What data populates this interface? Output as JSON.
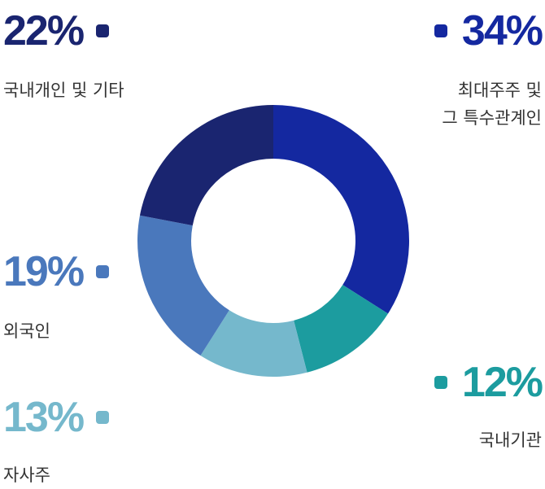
{
  "chart_data": {
    "type": "pie",
    "title": "",
    "center_label": "",
    "slices": [
      {
        "key": "largest",
        "label_lines": [
          "최대주주 및",
          "그 특수관계인"
        ],
        "value": 34,
        "display": "34%",
        "color": "#1428a0"
      },
      {
        "key": "inst",
        "label_lines": [
          "국내기관"
        ],
        "value": 12,
        "display": "12%",
        "color": "#1c9c9f"
      },
      {
        "key": "treasury",
        "label_lines": [
          "자사주"
        ],
        "value": 13,
        "display": "13%",
        "color": "#75b8cc"
      },
      {
        "key": "foreign",
        "label_lines": [
          "외국인"
        ],
        "value": 19,
        "display": "19%",
        "color": "#4a78bc"
      },
      {
        "key": "retail",
        "label_lines": [
          "국내개인 및 기타"
        ],
        "value": 22,
        "display": "22%",
        "color": "#1a2570"
      }
    ]
  }
}
